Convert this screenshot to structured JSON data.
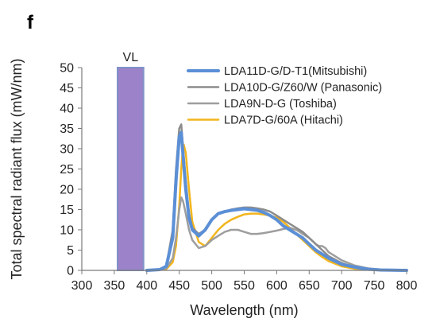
{
  "panel_label": "f",
  "chart_data": {
    "type": "line",
    "title": "",
    "xlabel": "Wavelength (nm)",
    "ylabel": "Total spectral radiant flux (mW/nm)",
    "xlim": [
      300,
      800
    ],
    "ylim": [
      0,
      50
    ],
    "xticks": [
      300,
      350,
      400,
      450,
      500,
      550,
      600,
      650,
      700,
      750,
      800
    ],
    "yticks": [
      0,
      5,
      10,
      15,
      20,
      25,
      30,
      35,
      40,
      45,
      50
    ],
    "grid": false,
    "legend_position": "top-right",
    "band": {
      "label": "VL",
      "x_start": 355,
      "x_end": 395,
      "top": 50,
      "color": "#9b82c9",
      "edge_color": "#7f93c8"
    },
    "series": [
      {
        "name": "LDA11D-G/D-T1(Mitsubishi)",
        "color": "#5b8fd6",
        "width": 4,
        "x": [
          400,
          420,
          430,
          440,
          445,
          450,
          453,
          456,
          460,
          465,
          470,
          480,
          490,
          500,
          510,
          520,
          530,
          540,
          550,
          560,
          570,
          580,
          590,
          600,
          610,
          620,
          630,
          640,
          650,
          660,
          670,
          680,
          700,
          720,
          740,
          760,
          780,
          800
        ],
        "y": [
          0,
          0.2,
          1,
          8,
          22,
          33,
          34,
          28,
          20,
          13,
          10,
          8.5,
          10,
          12.5,
          14,
          14.5,
          14.8,
          15,
          15.2,
          15,
          14.8,
          14.3,
          13.5,
          12.5,
          11,
          10,
          9,
          8,
          6.5,
          5,
          4,
          3,
          1.5,
          0.8,
          0.3,
          0.1,
          0.05,
          0
        ]
      },
      {
        "name": "LDA10D-G/Z60/W (Panasonic)",
        "color": "#8c8c8c",
        "width": 2.5,
        "x": [
          400,
          420,
          430,
          440,
          445,
          450,
          453,
          456,
          460,
          465,
          470,
          480,
          490,
          500,
          510,
          520,
          530,
          540,
          550,
          560,
          570,
          580,
          590,
          600,
          610,
          620,
          630,
          640,
          650,
          660,
          670,
          680,
          700,
          720,
          740,
          760,
          780,
          800
        ],
        "y": [
          0,
          0.2,
          1,
          10,
          25,
          35,
          36,
          30,
          22,
          14,
          10.5,
          9,
          10,
          12.5,
          14,
          14.5,
          15,
          15.3,
          15.5,
          15.5,
          15.3,
          15,
          14.5,
          13.5,
          12.5,
          11.5,
          10.5,
          9.5,
          8,
          6.5,
          5,
          3.5,
          1.8,
          0.8,
          0.3,
          0.1,
          0.05,
          0
        ]
      },
      {
        "name": "LDA9N-D-G (Toshiba)",
        "color": "#9e9e9e",
        "width": 2.5,
        "x": [
          400,
          420,
          430,
          440,
          445,
          450,
          453,
          456,
          460,
          465,
          470,
          480,
          490,
          500,
          510,
          520,
          530,
          540,
          550,
          560,
          570,
          580,
          590,
          600,
          610,
          620,
          630,
          640,
          650,
          660,
          665,
          670,
          675,
          680,
          700,
          720,
          740,
          760,
          780,
          800
        ],
        "y": [
          0,
          0.2,
          0.5,
          3,
          8,
          15,
          18,
          17,
          14,
          10,
          7.5,
          5.5,
          6,
          7.5,
          8.5,
          9.5,
          10,
          10,
          9.5,
          9,
          9,
          9.2,
          9.5,
          9.8,
          10.2,
          10.5,
          10,
          9,
          8,
          6.5,
          6,
          6,
          5.5,
          4.5,
          2.5,
          1.2,
          0.5,
          0.2,
          0.05,
          0
        ]
      },
      {
        "name": "LDA7D-G/60A (Hitachi)",
        "color": "#f2b51d",
        "width": 2.5,
        "x": [
          400,
          430,
          440,
          445,
          450,
          453,
          455,
          457,
          460,
          465,
          470,
          480,
          490,
          500,
          510,
          520,
          530,
          540,
          550,
          560,
          570,
          580,
          590,
          600,
          610,
          620,
          630,
          640,
          650,
          660,
          670,
          680,
          700,
          720,
          740,
          760,
          780,
          800
        ],
        "y": [
          0,
          0.3,
          2,
          6,
          16,
          25,
          29,
          31,
          29,
          20,
          12,
          7,
          6,
          8,
          10,
          11.5,
          12.5,
          13.2,
          13.8,
          14,
          14,
          13.8,
          13.5,
          13,
          12,
          10.5,
          9,
          7.5,
          6,
          4.5,
          3.3,
          2.3,
          1,
          0.4,
          0.15,
          0.05,
          0.02,
          0
        ]
      }
    ]
  }
}
